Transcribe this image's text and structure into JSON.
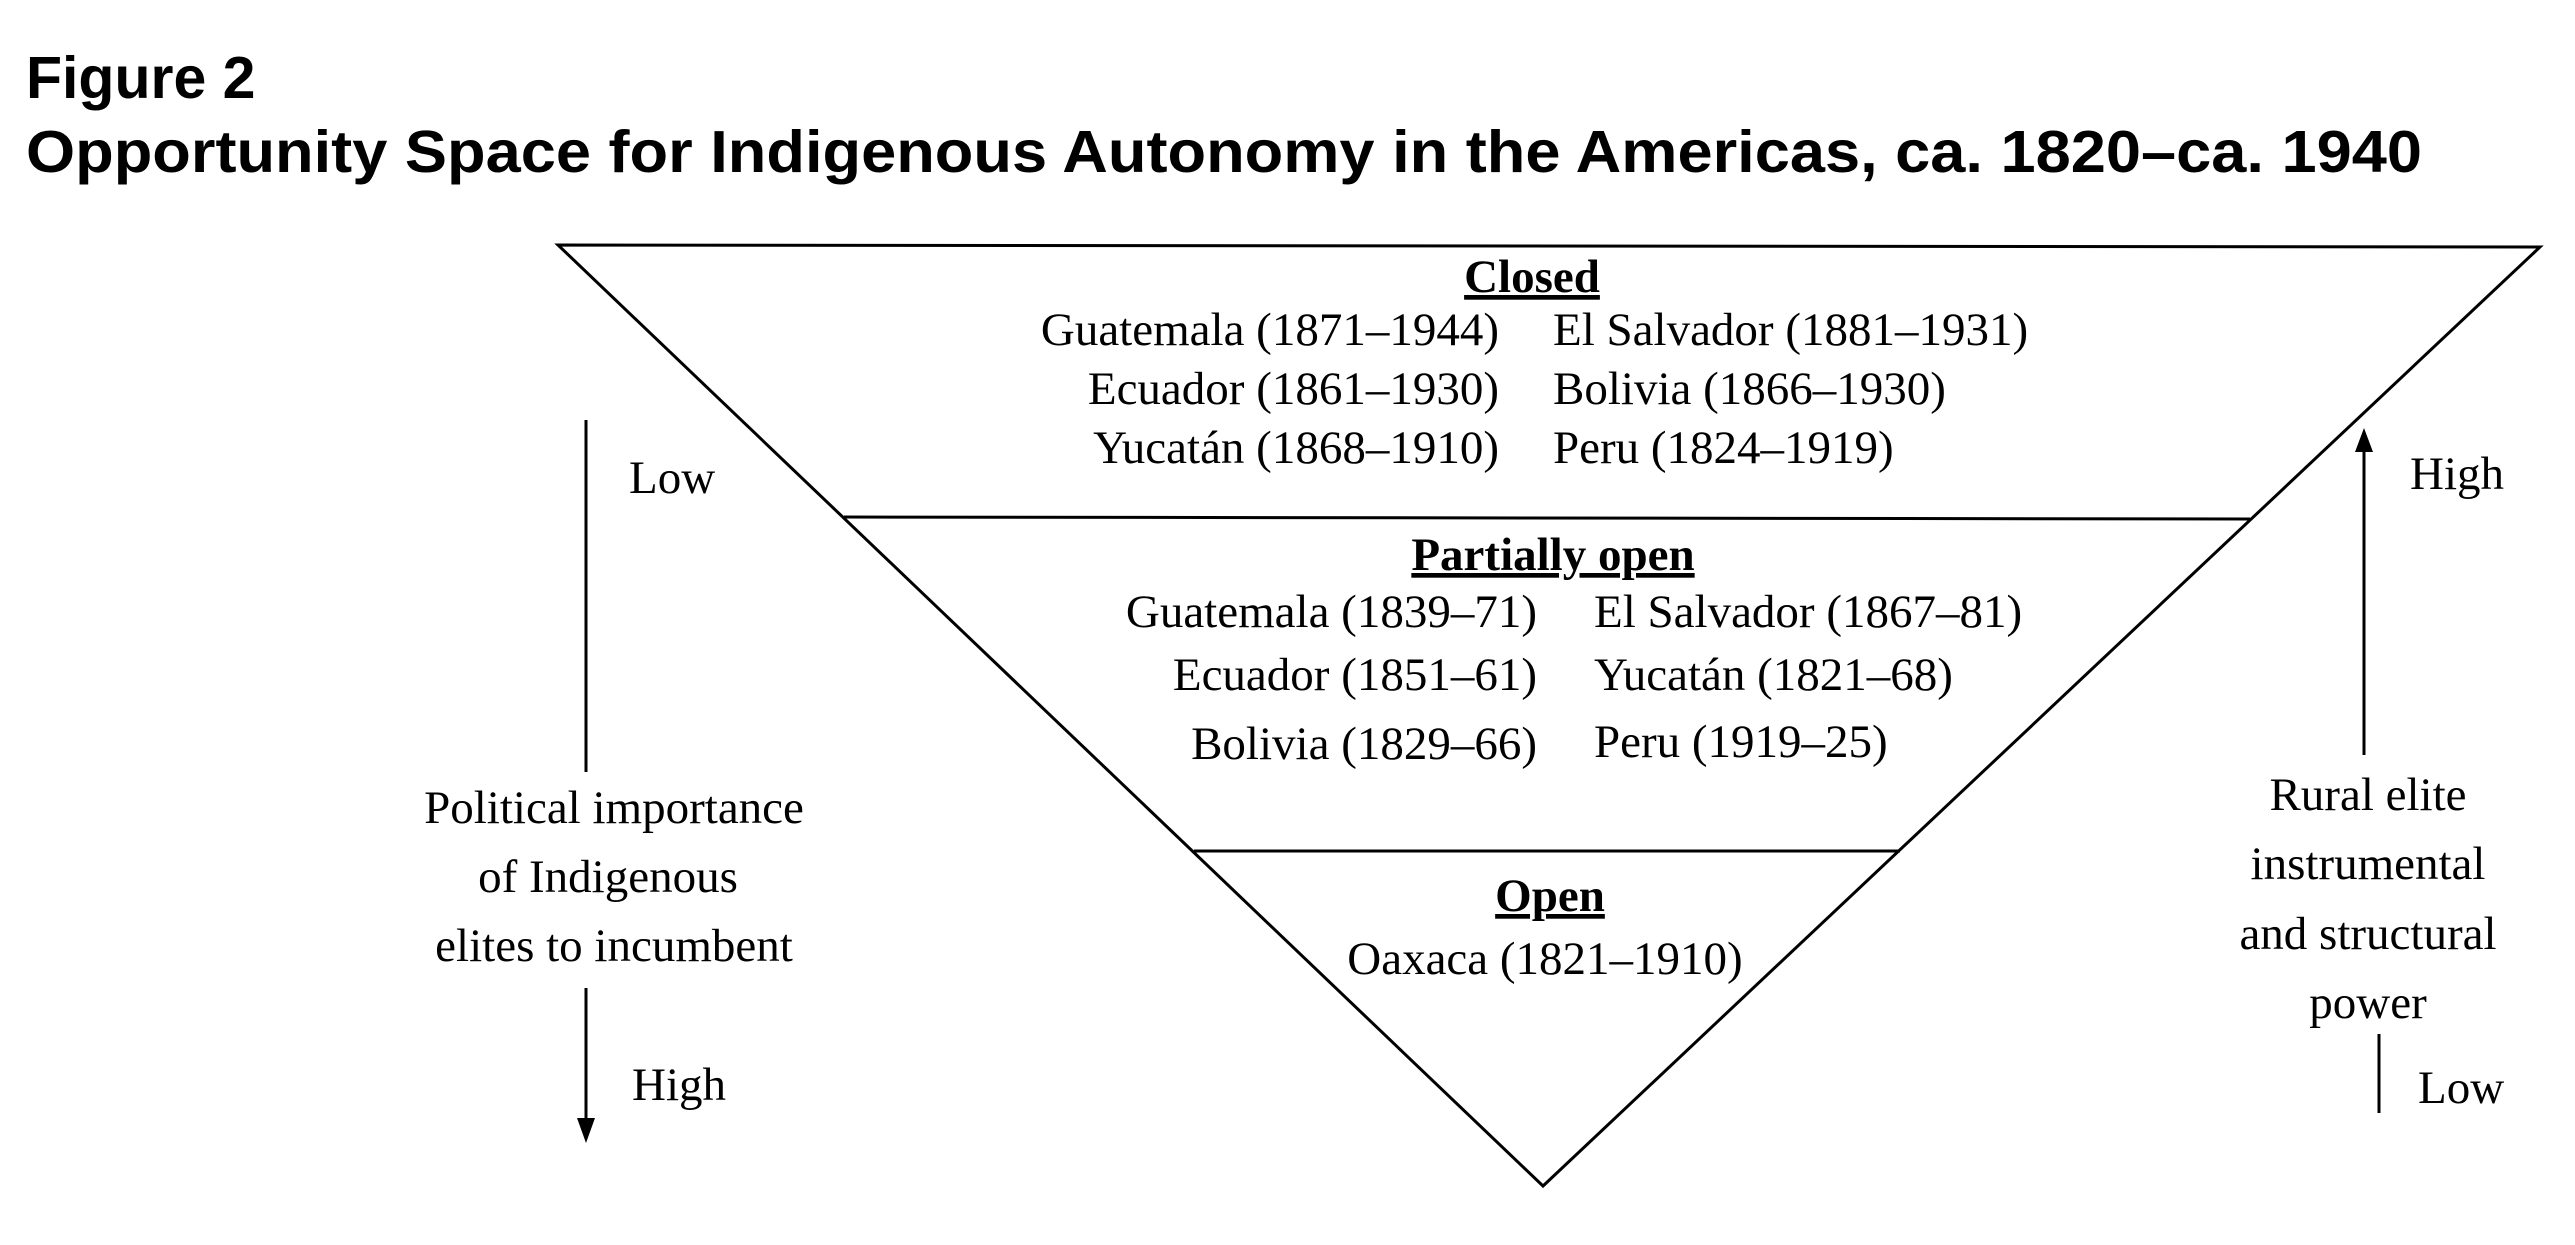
{
  "figure": {
    "label": "Figure 2",
    "title": "Opportunity Space for Indigenous Autonomy in the Americas, ca. 1820–ca. 1940"
  },
  "tiers": [
    {
      "heading": "Closed",
      "left": [
        "Guatemala (1871–1944)",
        "Ecuador (1861–1930)",
        "Yucatán (1868–1910)"
      ],
      "right": [
        "El Salvador (1881–1931)",
        "Bolivia (1866–1930)",
        "Peru (1824–1919)"
      ]
    },
    {
      "heading": "Partially open",
      "left": [
        "Guatemala (1839–71)",
        "Ecuador (1851–61)",
        "Bolivia (1829–66)"
      ],
      "right": [
        "El Salvador (1867–81)",
        "Yucatán (1821–68)",
        "Peru (1919–25)"
      ]
    },
    {
      "heading": "Open",
      "items": [
        "Oaxaca (1821–1910)"
      ]
    }
  ],
  "left_axis": {
    "top": "Low",
    "bottom": "High",
    "label": [
      "Political importance",
      "of Indigenous",
      "elites to incumbent"
    ]
  },
  "right_axis": {
    "top": "High",
    "bottom": "Low",
    "label": [
      "Rural elite",
      "instrumental",
      "and structural",
      "power"
    ]
  }
}
